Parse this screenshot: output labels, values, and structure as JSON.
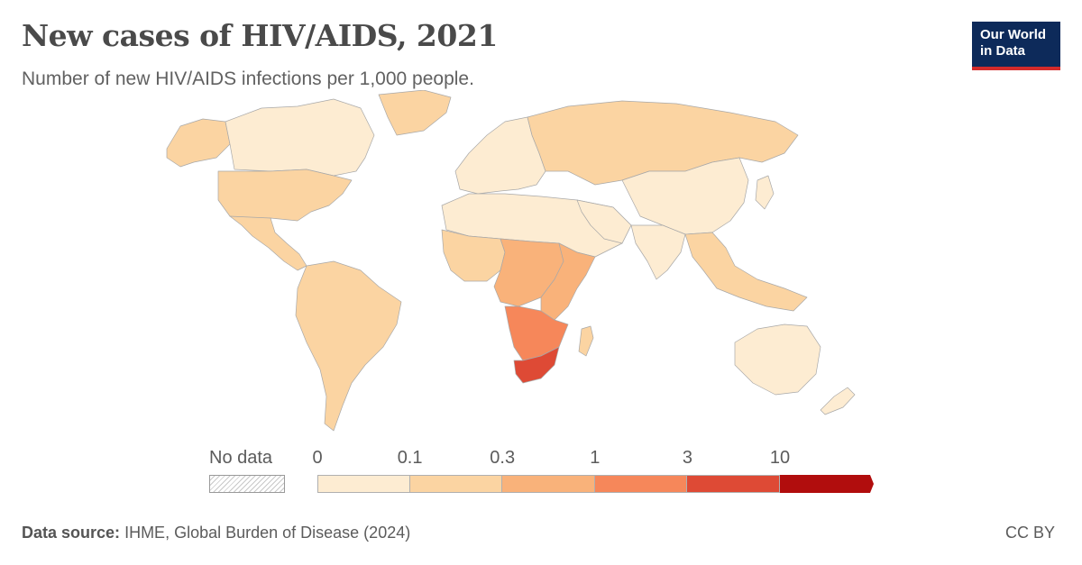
{
  "header": {
    "title": "New cases of HIV/AIDS, 2021",
    "subtitle": "Number of new HIV/AIDS infections per 1,000 people."
  },
  "logo": {
    "line1": "Our World",
    "line2": "in Data",
    "bg_color": "#0d2a5a",
    "stripe_color": "#d42b2b"
  },
  "legend": {
    "no_data_label": "No data",
    "tick_labels": [
      "0",
      "0.1",
      "0.3",
      "1",
      "3",
      "10"
    ],
    "bins": [
      {
        "from": "0",
        "to": "0.1",
        "color": "#fdecd2"
      },
      {
        "from": "0.1",
        "to": "0.3",
        "color": "#fbd4a2"
      },
      {
        "from": "0.3",
        "to": "1",
        "color": "#f9b27a"
      },
      {
        "from": "1",
        "to": "3",
        "color": "#f6875a"
      },
      {
        "from": "3",
        "to": "10",
        "color": "#de4a35"
      },
      {
        "from": "10",
        "to": "",
        "color": "#b10d0d"
      }
    ]
  },
  "map_regions": [
    {
      "region": "North America",
      "color": "#fbd4a2"
    },
    {
      "region": "Canada",
      "color": "#fdecd2"
    },
    {
      "region": "Greenland",
      "color": "#fbd4a2"
    },
    {
      "region": "Central America",
      "color": "#fbd4a2"
    },
    {
      "region": "South America",
      "color": "#fbd4a2"
    },
    {
      "region": "Europe",
      "color": "#fdecd2"
    },
    {
      "region": "Russia",
      "color": "#fbd4a2"
    },
    {
      "region": "North Africa & Middle East",
      "color": "#fdecd2"
    },
    {
      "region": "West Africa",
      "color": "#fbd4a2"
    },
    {
      "region": "Central Africa",
      "color": "#f9b27a"
    },
    {
      "region": "East Africa",
      "color": "#f9b27a"
    },
    {
      "region": "Southern Africa",
      "color": "#f6875a"
    },
    {
      "region": "South Africa",
      "color": "#de4a35"
    },
    {
      "region": "Madagascar",
      "color": "#fbd4a2"
    },
    {
      "region": "China & Central Asia",
      "color": "#fdecd2"
    },
    {
      "region": "South Asia",
      "color": "#fdecd2"
    },
    {
      "region": "Southeast Asia",
      "color": "#fbd4a2"
    },
    {
      "region": "Australia",
      "color": "#fdecd2"
    },
    {
      "region": "New Zealand",
      "color": "#fdecd2"
    }
  ],
  "footer": {
    "source_label": "Data source:",
    "source_text": "IHME, Global Burden of Disease (2024)",
    "license": "CC BY"
  }
}
